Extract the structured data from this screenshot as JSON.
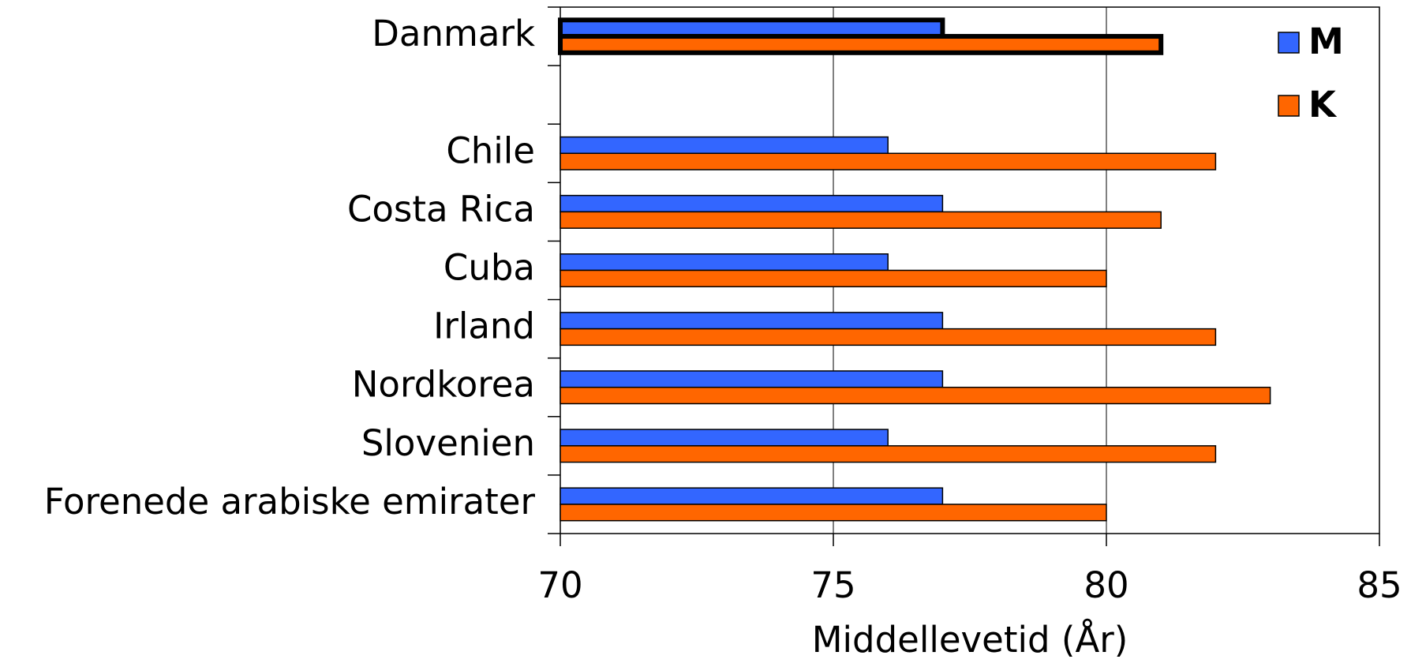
{
  "chart_data": {
    "type": "barh",
    "x_label": "Middellevetid (År)",
    "categories": [
      "Danmark",
      null,
      "Chile",
      "Costa Rica",
      "Cuba",
      "Irland",
      "Nordkorea",
      "Slovenien",
      "Forenede arabiske emirater"
    ],
    "series": [
      {
        "name": "M",
        "color": "#3366ff",
        "values": [
          77,
          null,
          76,
          77,
          76,
          77,
          77,
          76,
          77
        ]
      },
      {
        "name": "K",
        "color": "#ff6600",
        "values": [
          81,
          null,
          82,
          81,
          80,
          82,
          83,
          82,
          80
        ]
      }
    ],
    "highlight_category": "Danmark",
    "xlim": [
      70,
      85
    ],
    "xticks": [
      70,
      75,
      80,
      85
    ],
    "grid": true,
    "legend": "upper right"
  }
}
